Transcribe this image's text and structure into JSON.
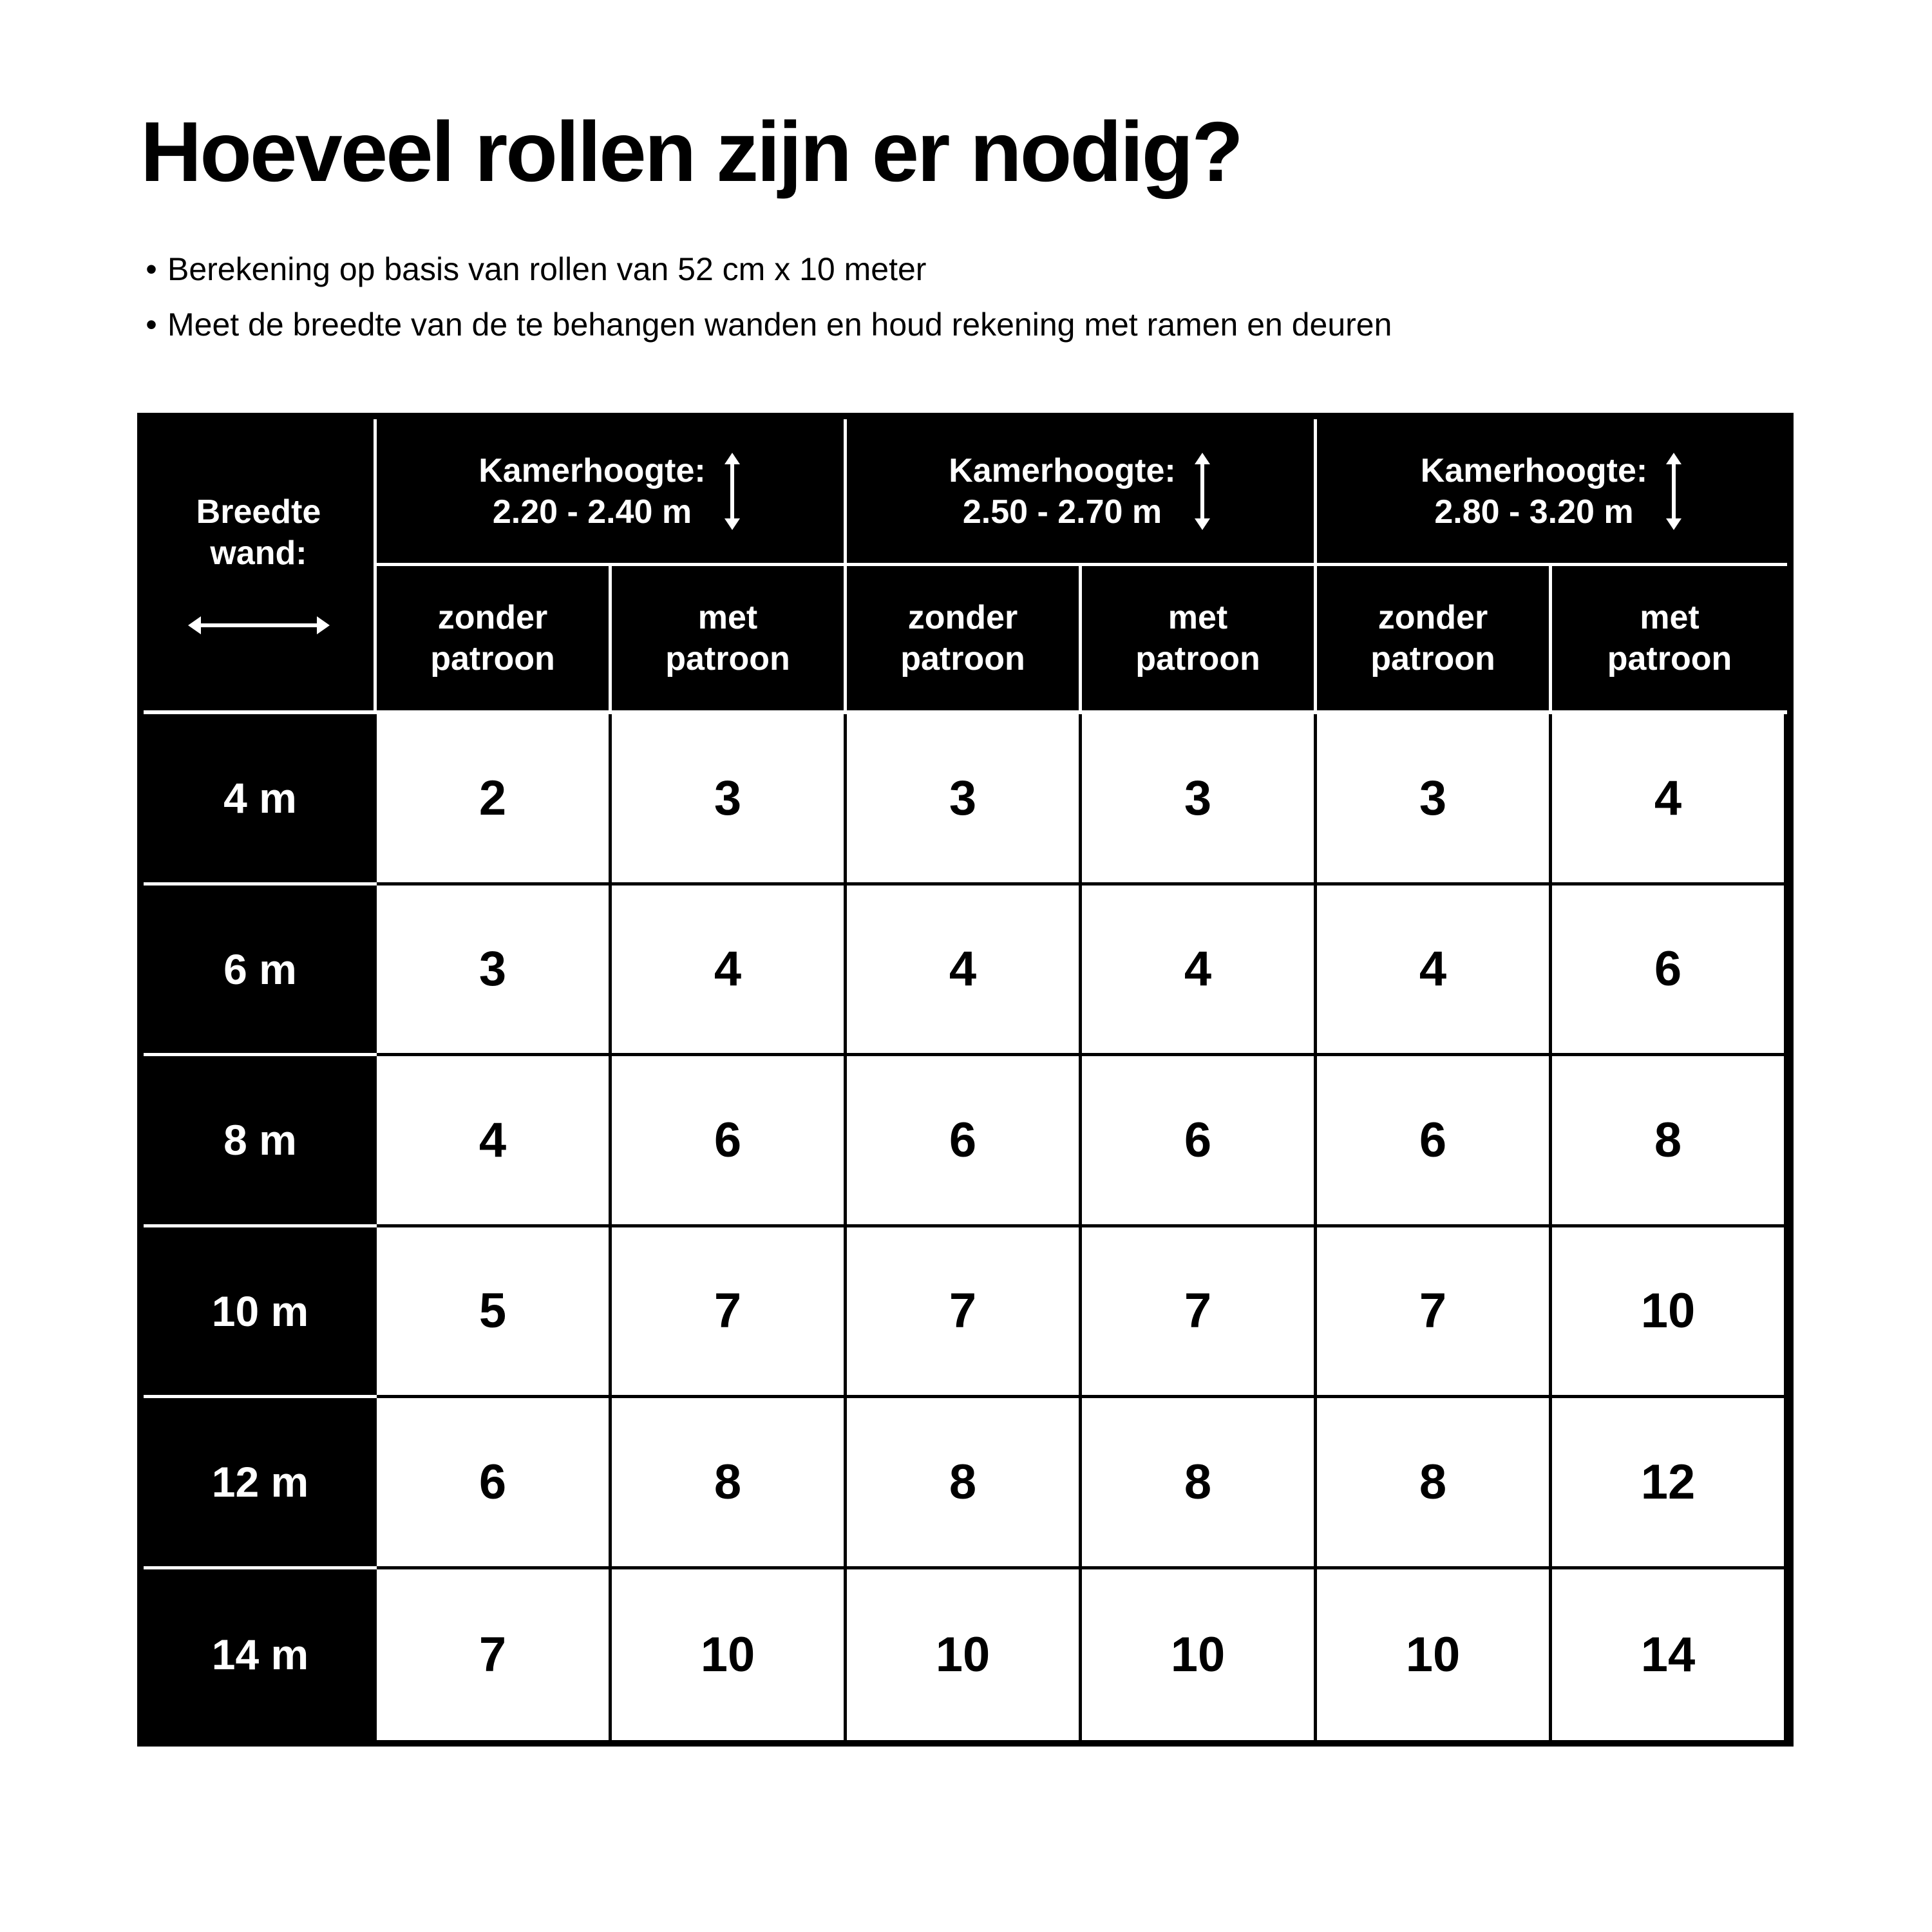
{
  "title": "Hoeveel rollen zijn er nodig?",
  "bullets": [
    "Berekening op basis van rollen van 52 cm x 10 meter",
    "Meet de breedte van de te behangen wanden en houd rekening met ramen en deuren"
  ],
  "table": {
    "corner": {
      "line1": "Breedte",
      "line2": "wand:",
      "icon": "horizontal-double-arrow"
    },
    "groups": [
      {
        "label": "Kamerhoogte:",
        "range": "2.20 - 2.40 m",
        "icon": "vertical-double-arrow"
      },
      {
        "label": "Kamerhoogte:",
        "range": "2.50 - 2.70 m",
        "icon": "vertical-double-arrow"
      },
      {
        "label": "Kamerhoogte:",
        "range": "2.80 - 3.20 m",
        "icon": "vertical-double-arrow"
      }
    ],
    "subheaders": [
      {
        "l1": "zonder",
        "l2": "patroon"
      },
      {
        "l1": "met",
        "l2": "patroon"
      },
      {
        "l1": "zonder",
        "l2": "patroon"
      },
      {
        "l1": "met",
        "l2": "patroon"
      },
      {
        "l1": "zonder",
        "l2": "patroon"
      },
      {
        "l1": "met",
        "l2": "patroon"
      }
    ],
    "rows": [
      {
        "label": "4 m",
        "values": [
          "2",
          "3",
          "3",
          "3",
          "3",
          "4"
        ]
      },
      {
        "label": "6 m",
        "values": [
          "3",
          "4",
          "4",
          "4",
          "4",
          "6"
        ]
      },
      {
        "label": "8 m",
        "values": [
          "4",
          "6",
          "6",
          "6",
          "6",
          "8"
        ]
      },
      {
        "label": "10 m",
        "values": [
          "5",
          "7",
          "7",
          "7",
          "7",
          "10"
        ]
      },
      {
        "label": "12 m",
        "values": [
          "6",
          "8",
          "8",
          "8",
          "8",
          "12"
        ]
      },
      {
        "label": "14 m",
        "values": [
          "7",
          "10",
          "10",
          "10",
          "10",
          "14"
        ]
      }
    ]
  }
}
